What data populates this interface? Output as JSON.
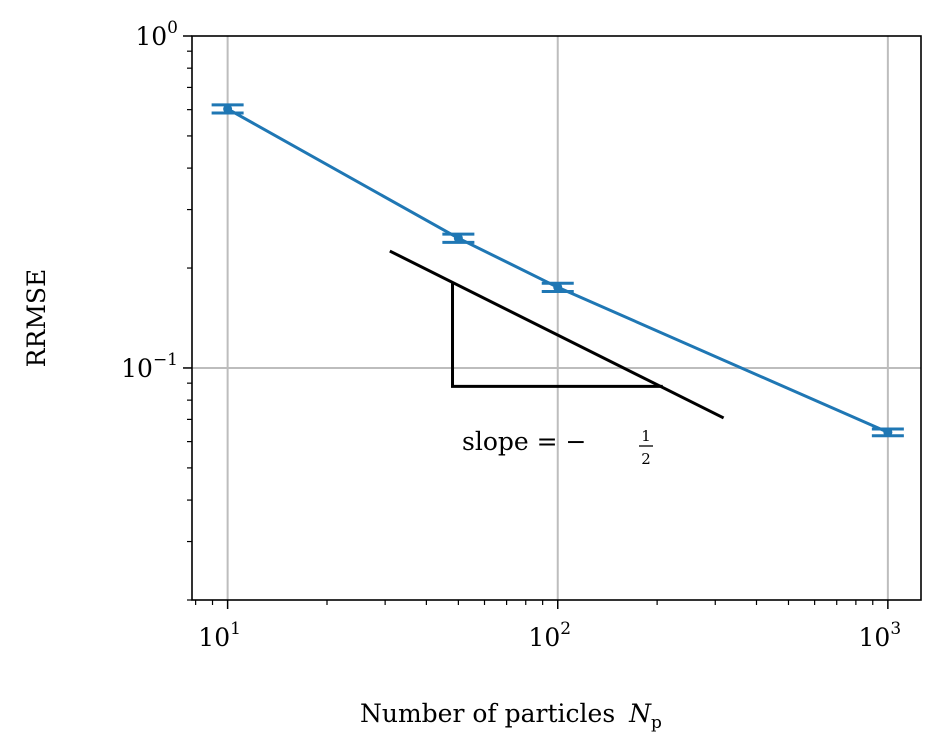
{
  "chart_data": {
    "type": "line",
    "title": "",
    "xlabel": "Number of particles",
    "xlabel_symbol": "N",
    "xlabel_subscript": "p",
    "ylabel": "RRMSE",
    "xscale": "log",
    "yscale": "log",
    "xlim": [
      7.8,
      1260
    ],
    "ylim": [
      0.02,
      1.0
    ],
    "grid": true,
    "x_ticks": [
      {
        "value": 10,
        "base": "10",
        "exp": "1"
      },
      {
        "value": 100,
        "base": "10",
        "exp": "2"
      },
      {
        "value": 1000,
        "base": "10",
        "exp": "3"
      }
    ],
    "y_ticks": [
      {
        "value": 1,
        "base": "10",
        "exp": "0"
      },
      {
        "value": 0.1,
        "base": "10",
        "exp": "−1"
      }
    ],
    "series": [
      {
        "name": "RRMSE",
        "color": "#1f77b4",
        "x": [
          10,
          50,
          100,
          1000
        ],
        "y": [
          0.603,
          0.246,
          0.175,
          0.064
        ],
        "yerr": [
          0.017,
          0.007,
          0.005,
          0.0015
        ]
      }
    ],
    "annotation": {
      "slope_line": {
        "x": [
          31,
          318
        ],
        "y": [
          0.225,
          0.0707
        ]
      },
      "triangle": {
        "x0": 48,
        "x1": 208,
        "y_top": 0.18,
        "y_bottom": 0.088
      },
      "label": "slope = −",
      "fraction_num": "1",
      "fraction_den": "2",
      "color": "#000000"
    }
  }
}
